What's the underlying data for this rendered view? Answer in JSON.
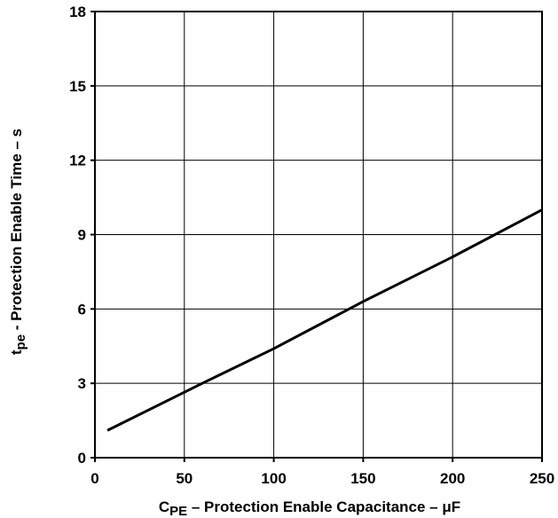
{
  "chart_data": {
    "type": "line",
    "xlabel": {
      "prefix": "C",
      "subscript": "PE",
      "text": " – Protection Enable Capacitance – ",
      "unit": "μF"
    },
    "ylabel": {
      "prefix": "t",
      "subscript": "pe",
      "text": " - Protection Enable Time – s"
    },
    "xlim": [
      0,
      250
    ],
    "ylim": [
      0,
      18
    ],
    "xticks": [
      0,
      50,
      100,
      150,
      200,
      250
    ],
    "yticks": [
      0,
      3,
      6,
      9,
      12,
      15,
      18
    ],
    "xtick_labels": [
      "0",
      "50",
      "100",
      "150",
      "200",
      "250"
    ],
    "ytick_labels": [
      "0",
      "3",
      "6",
      "9",
      "12",
      "15",
      "18"
    ],
    "grid": true,
    "legend": "none",
    "series": [
      {
        "color": "#000000",
        "x": [
          7,
          60,
          100,
          150,
          200,
          250
        ],
        "y": [
          1.1,
          3.0,
          4.4,
          6.3,
          8.1,
          10.0
        ]
      }
    ]
  }
}
